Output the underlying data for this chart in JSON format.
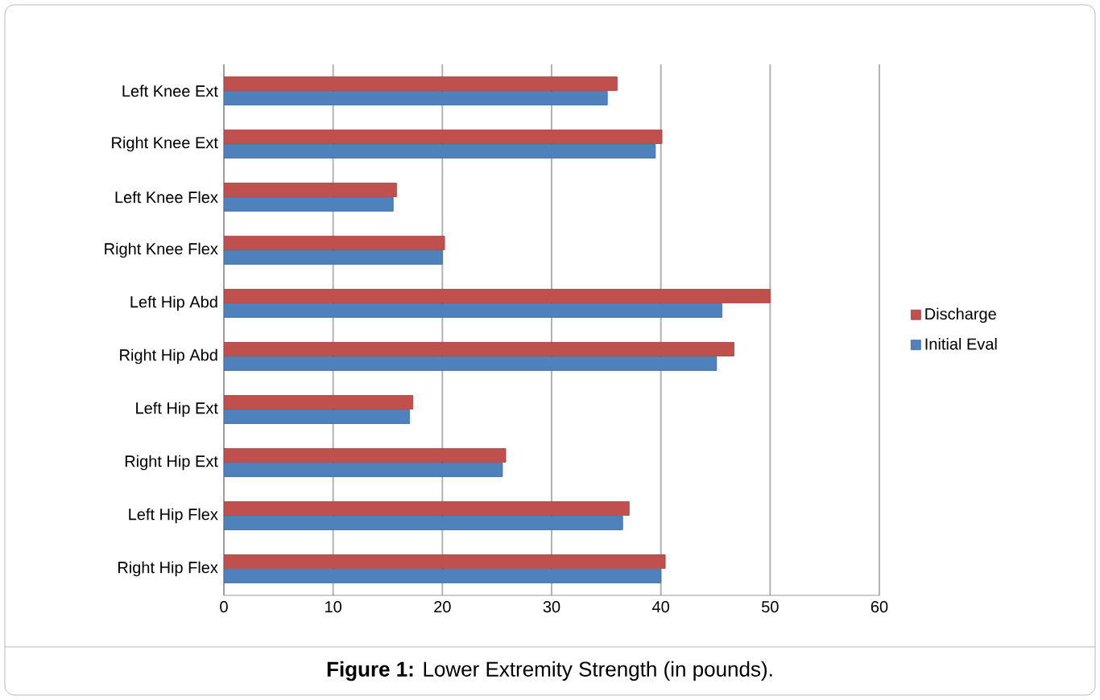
{
  "chart_data": {
    "type": "bar",
    "orientation": "horizontal",
    "title": "**Figure 1:** Lower Extremity Strength (in pounds).",
    "categories": [
      "Left Knee Ext",
      "Right Knee Ext",
      "Left Knee Flex",
      "Right Knee Flex",
      "Left Hip Abd",
      "Right Hip Abd",
      "Left Hip Ext",
      "Right Hip Ext",
      "Left Hip Flex",
      "Right Hip Flex"
    ],
    "series": [
      {
        "name": "Discharge",
        "color": "#c0504d",
        "values": [
          36,
          40.1,
          15.8,
          20.2,
          50,
          46.7,
          17.3,
          25.8,
          37.1,
          40.4
        ]
      },
      {
        "name": "Initial Eval",
        "color": "#4f81bd",
        "values": [
          35.1,
          39.5,
          15.5,
          20,
          45.6,
          45.1,
          17,
          25.5,
          36.5,
          40
        ]
      }
    ],
    "xlim": [
      0,
      60
    ],
    "xticks": [
      0,
      10,
      20,
      30,
      40,
      50,
      60
    ],
    "grid": "x",
    "legend": "right"
  }
}
